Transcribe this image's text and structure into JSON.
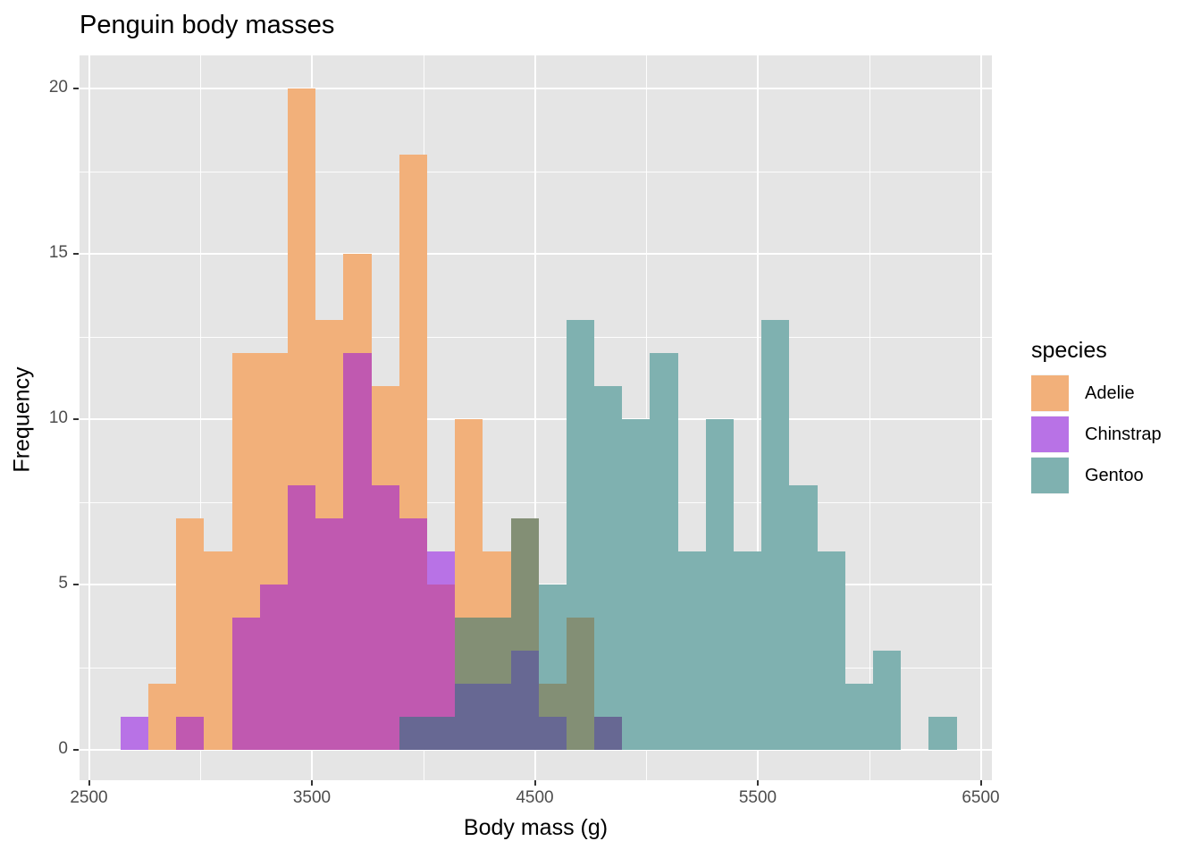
{
  "chart_data": {
    "type": "bar",
    "subtype": "histogram-overlapping",
    "title": "Penguin body masses",
    "xlabel": "Body mass (g)",
    "ylabel": "Frequency",
    "xlim": [
      2460,
      6550
    ],
    "ylim": [
      -0.9,
      21
    ],
    "x_ticks": [
      2500,
      3500,
      4500,
      5500,
      6500
    ],
    "y_ticks": [
      0,
      5,
      10,
      15,
      20
    ],
    "grid": true,
    "legend_position": "right",
    "legend_title": "species",
    "bin_width": 125,
    "bin_start": 2642,
    "bins": 30,
    "series": [
      {
        "name": "Adelie",
        "color": "#F2B07A",
        "values": [
          0,
          2,
          7,
          6,
          12,
          12,
          20,
          13,
          15,
          11,
          18,
          5,
          10,
          6,
          7,
          2,
          4,
          0,
          0,
          0,
          0,
          0,
          0,
          0,
          0,
          0,
          0,
          0,
          0,
          0
        ]
      },
      {
        "name": "Chinstrap",
        "color": "#B872E6",
        "values": [
          1,
          0,
          1,
          0,
          4,
          5,
          8,
          7,
          12,
          8,
          7,
          6,
          2,
          2,
          3,
          1,
          0,
          1,
          0,
          0,
          0,
          0,
          0,
          0,
          0,
          0,
          0,
          0,
          0,
          0
        ]
      },
      {
        "name": "Gentoo",
        "color": "#7FB1B0",
        "values": [
          0,
          0,
          0,
          0,
          0,
          0,
          0,
          0,
          0,
          0,
          1,
          1,
          4,
          4,
          7,
          5,
          13,
          11,
          10,
          12,
          6,
          10,
          6,
          13,
          8,
          6,
          2,
          3,
          0,
          1
        ]
      }
    ]
  },
  "overlap_colors": {
    "A": "#F2B07A",
    "C": "#B872E6",
    "G": "#7FB1B0",
    "AC": "#C059B0",
    "AG": "#838F75",
    "CG": "#676893",
    "ACG": "#676893"
  },
  "title": "Penguin body masses",
  "xlabel": "Body mass (g)",
  "ylabel": "Frequency",
  "legend": {
    "title": "species",
    "items": [
      {
        "label": "Adelie",
        "color": "#F2B07A"
      },
      {
        "label": "Chinstrap",
        "color": "#B872E6"
      },
      {
        "label": "Gentoo",
        "color": "#7FB1B0"
      }
    ]
  },
  "y_tick_labels": [
    "0",
    "5",
    "10",
    "15",
    "20"
  ],
  "x_tick_labels": [
    "2500",
    "3500",
    "4500",
    "5500",
    "6500"
  ]
}
